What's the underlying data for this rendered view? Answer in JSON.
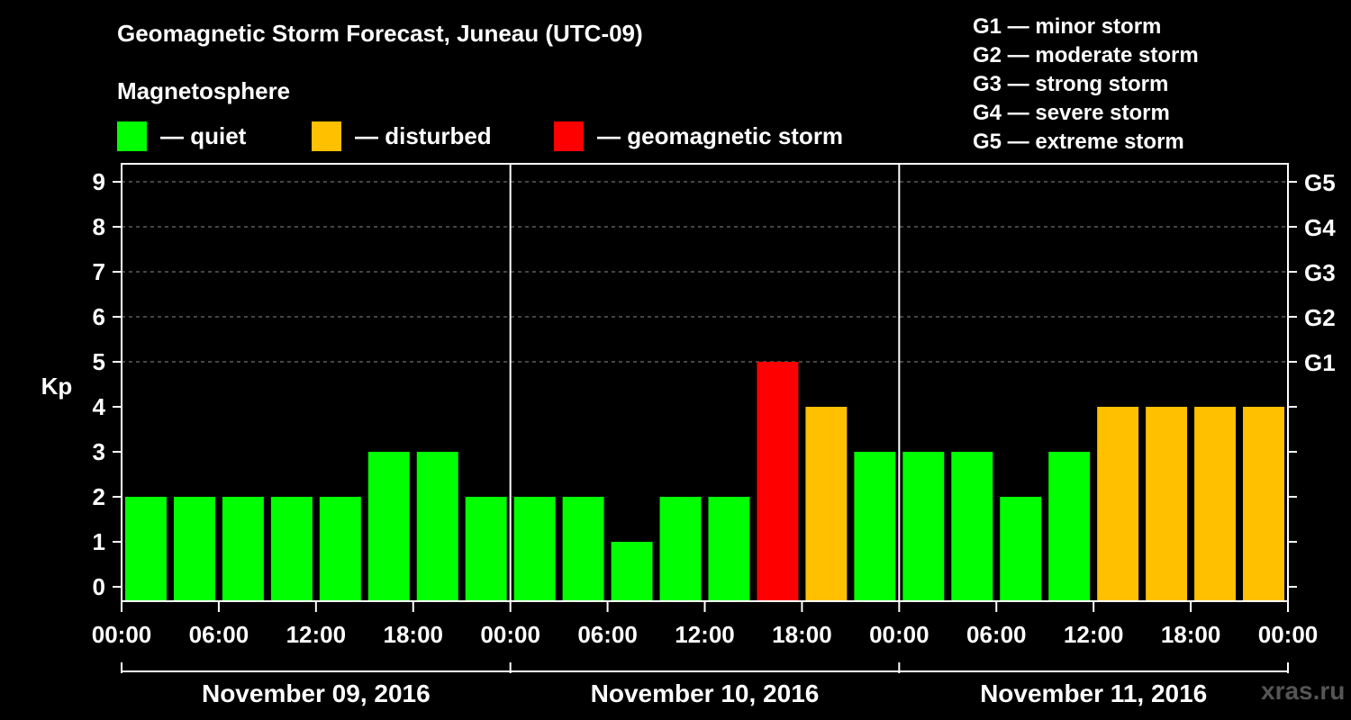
{
  "chart_data": {
    "type": "bar",
    "title": "Geomagnetic Storm Forecast, Juneau (UTC-09)",
    "legend_title": "Magnetosphere",
    "legend": [
      {
        "label": "— quiet",
        "color": "#00ff00",
        "status": "quiet"
      },
      {
        "label": "— disturbed",
        "color": "#ffc000",
        "status": "disturbed"
      },
      {
        "label": "— geomagnetic storm",
        "color": "#ff0000",
        "status": "storm"
      }
    ],
    "storm_levels": [
      "G1 — minor storm",
      "G2 — moderate storm",
      "G3 — strong storm",
      "G4 — severe storm",
      "G5 — extreme storm"
    ],
    "ylabel": "Kp",
    "ylim": [
      0,
      9
    ],
    "yticks": [
      "0",
      "1",
      "2",
      "3",
      "4",
      "5",
      "6",
      "7",
      "8",
      "9"
    ],
    "right_axis": [
      {
        "kp": 5,
        "label": "G1"
      },
      {
        "kp": 6,
        "label": "G2"
      },
      {
        "kp": 7,
        "label": "G3"
      },
      {
        "kp": 8,
        "label": "G4"
      },
      {
        "kp": 9,
        "label": "G5"
      }
    ],
    "xticks": [
      "00:00",
      "06:00",
      "12:00",
      "18:00",
      "00:00",
      "06:00",
      "12:00",
      "18:00",
      "00:00",
      "06:00",
      "12:00",
      "18:00",
      "00:00"
    ],
    "days": [
      "November 09, 2016",
      "November 10, 2016",
      "November 11, 2016"
    ],
    "interval_hours": 3,
    "values": [
      2,
      2,
      2,
      2,
      2,
      3,
      3,
      2,
      2,
      2,
      1,
      2,
      2,
      5,
      4,
      3,
      3,
      3,
      2,
      3,
      4,
      4,
      4,
      4
    ],
    "status": [
      "quiet",
      "quiet",
      "quiet",
      "quiet",
      "quiet",
      "quiet",
      "quiet",
      "quiet",
      "quiet",
      "quiet",
      "quiet",
      "quiet",
      "quiet",
      "storm",
      "disturbed",
      "quiet",
      "quiet",
      "quiet",
      "quiet",
      "quiet",
      "disturbed",
      "disturbed",
      "disturbed",
      "disturbed"
    ],
    "colors": {
      "quiet": "#00ff00",
      "disturbed": "#ffc000",
      "storm": "#ff0000"
    }
  },
  "watermark": "xras.ru"
}
